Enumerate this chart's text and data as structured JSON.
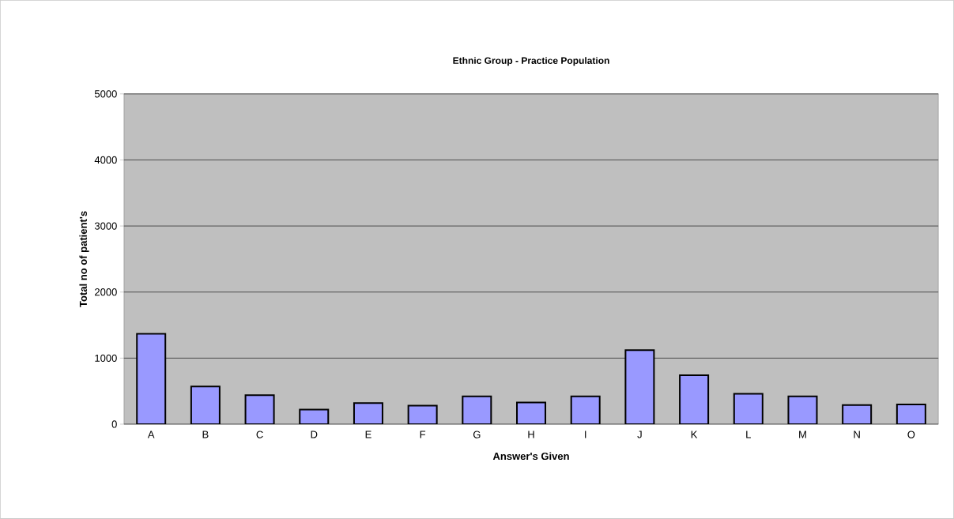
{
  "chart_data": {
    "type": "bar",
    "title": "Ethnic Group - Practice Population",
    "xlabel": "Answer's Given",
    "ylabel": "Total no of patient's",
    "categories": [
      "A",
      "B",
      "C",
      "D",
      "E",
      "F",
      "G",
      "H",
      "I",
      "J",
      "K",
      "L",
      "M",
      "N",
      "O"
    ],
    "values": [
      1370,
      570,
      440,
      220,
      320,
      280,
      420,
      330,
      420,
      1120,
      740,
      460,
      420,
      290,
      300
    ],
    "color": "#9999ff",
    "ylim": [
      0,
      5000
    ],
    "yticks": [
      0,
      1000,
      2000,
      3000,
      4000,
      5000
    ],
    "grid": "y"
  }
}
